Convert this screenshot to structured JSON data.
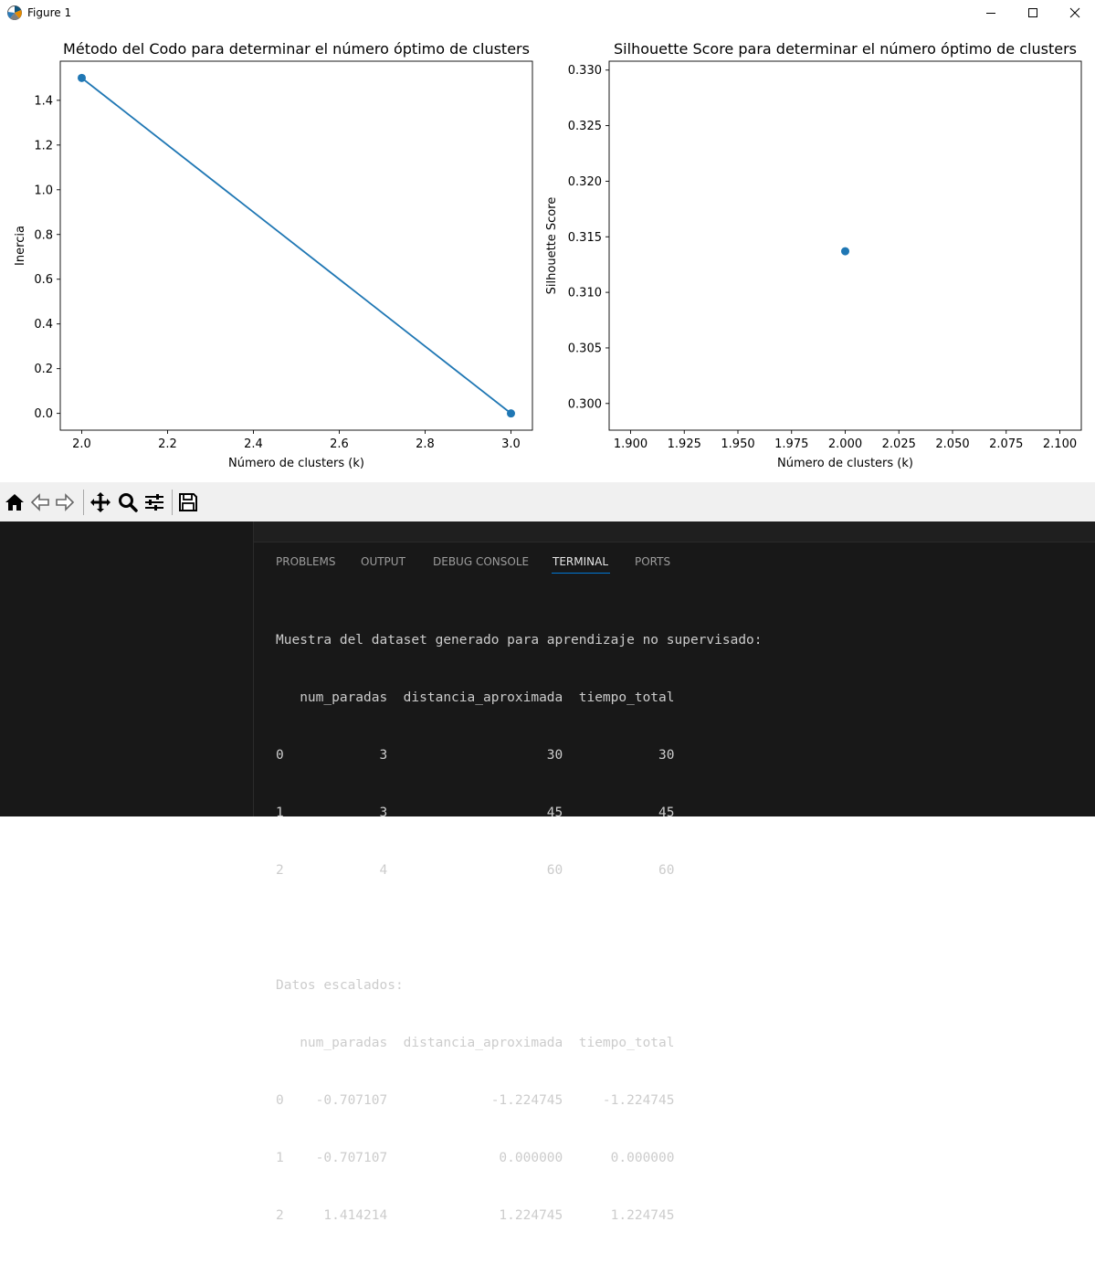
{
  "window": {
    "title": "Figure 1",
    "icon": "matplotlib-icon",
    "controls": [
      "minimize-icon",
      "maximize-icon",
      "close-icon"
    ]
  },
  "chart_data": [
    {
      "type": "line",
      "title": "Método del Codo para determinar el número óptimo de clusters",
      "xlabel": "Número de clusters (k)",
      "ylabel": "Inercia",
      "x": [
        2,
        3
      ],
      "series": [
        {
          "values": [
            1.5,
            0.0
          ]
        }
      ],
      "xlim": [
        1.95,
        3.05
      ],
      "ylim": [
        -0.075,
        1.575
      ],
      "xticks": [
        "2.0",
        "2.2",
        "2.4",
        "2.6",
        "2.8",
        "3.0"
      ],
      "yticks": [
        "0.0",
        "0.2",
        "0.4",
        "0.6",
        "0.8",
        "1.0",
        "1.2",
        "1.4"
      ],
      "markers": true,
      "grid": false,
      "color": "#1f77b4"
    },
    {
      "type": "scatter",
      "title": "Silhouette Score para determinar el número óptimo de clusters",
      "xlabel": "Número de clusters (k)",
      "ylabel": "Silhouette Score",
      "x": [
        2
      ],
      "series": [
        {
          "values": [
            0.3137
          ]
        }
      ],
      "xlim": [
        1.89,
        2.11
      ],
      "ylim": [
        0.2976,
        0.3308
      ],
      "xticks": [
        "1.900",
        "1.925",
        "1.950",
        "1.975",
        "2.000",
        "2.025",
        "2.050",
        "2.075",
        "2.100"
      ],
      "yticks": [
        "0.300",
        "0.305",
        "0.310",
        "0.315",
        "0.320",
        "0.325",
        "0.330"
      ],
      "markers": true,
      "grid": false,
      "color": "#1f77b4"
    }
  ],
  "toolbar": {
    "buttons": [
      "home-icon",
      "back-icon",
      "forward-icon",
      "pan-icon",
      "zoom-icon",
      "configure-subplots-icon",
      "save-icon"
    ]
  },
  "panel": {
    "tabs": [
      {
        "label": "PROBLEMS",
        "active": false
      },
      {
        "label": "OUTPUT",
        "active": false
      },
      {
        "label": "DEBUG CONSOLE",
        "active": false
      },
      {
        "label": "TERMINAL",
        "active": true
      },
      {
        "label": "PORTS",
        "active": false
      }
    ],
    "active_color": "#0078d4"
  },
  "terminal": {
    "lines": [
      "Muestra del dataset generado para aprendizaje no supervisado:",
      "   num_paradas  distancia_aproximada  tiempo_total",
      "0            3                    30            30",
      "1            3                    45            45",
      "2            4                    60            60",
      "",
      "Datos escalados:",
      "   num_paradas  distancia_aproximada  tiempo_total",
      "0    -0.707107             -1.224745     -1.224745",
      "1    -0.707107              0.000000      0.000000",
      "2     1.414214              1.224745      1.224745"
    ]
  }
}
